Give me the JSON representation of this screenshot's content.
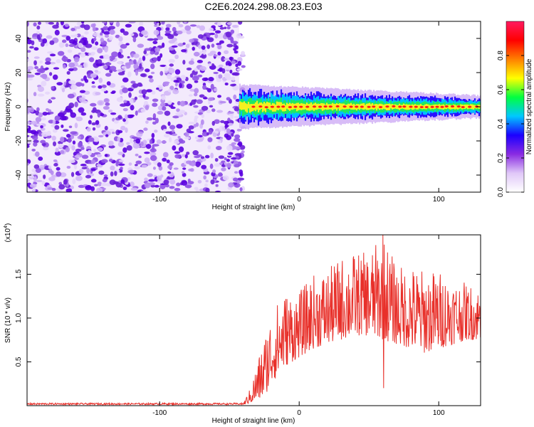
{
  "title": "C2E6.2024.298.08.23.E03",
  "colors": {
    "snr_line": "#e8302a",
    "cmap": [
      "#ffffff",
      "#e0c8f8",
      "#8a2be2",
      "#1b00ff",
      "#00c8ff",
      "#00ff40",
      "#ffff00",
      "#ff8000",
      "#ff0000",
      "#ff1a60"
    ]
  },
  "chart_data": [
    {
      "type": "heatmap",
      "name": "spectrogram",
      "xlabel": "Height of straight line (km)",
      "ylabel": "Frequency (Hz)",
      "xlim": [
        -195,
        130
      ],
      "ylim": [
        -50,
        50
      ],
      "xticks": [
        -100,
        0,
        100
      ],
      "xtick_labels": [
        "-100",
        "0",
        "100"
      ],
      "yticks": [
        -40,
        -20,
        0,
        20,
        40
      ],
      "ytick_labels": [
        "-40",
        "-20",
        "0",
        "20",
        "40"
      ],
      "noise_region_x": [
        -195,
        -43
      ],
      "signal_band": {
        "x_start": -43,
        "x_end": 130,
        "center_hz": 0,
        "width_hz_start": 10,
        "width_hz_end": 5
      },
      "colorbar": {
        "label": "Normalized spectral amplitude",
        "range": [
          0,
          1
        ],
        "ticks": [
          0.0,
          0.2,
          0.4,
          0.6,
          0.8
        ],
        "tick_labels": [
          "0.0",
          "0.2",
          "0.4",
          "0.6",
          "0.8"
        ]
      }
    },
    {
      "type": "line",
      "name": "snr",
      "xlabel": "Height of straight line (km)",
      "ylabel": "SNR (10 * v/v)",
      "scale_label": "(x10",
      "scale_exp": "4",
      "scale_close": ")",
      "xlim": [
        -195,
        130
      ],
      "ylim": [
        0,
        1.95
      ],
      "xticks": [
        -100,
        0,
        100
      ],
      "xtick_labels": [
        "-100",
        "0",
        "100"
      ],
      "yticks": [
        0.5,
        1.0,
        1.5
      ],
      "ytick_labels": [
        "0.5",
        "1.0",
        "1.5"
      ],
      "series_description": "noise floor ~0.02 until -35 km, rises 0.3-0.8 by -20 km, ~1.0 mean from 0 km, peaks ~1.7-1.9 near 40-60 km, ~1.1 at 130 km",
      "envelope": {
        "x": [
          -195,
          -40,
          -35,
          -30,
          -25,
          -20,
          -15,
          -10,
          0,
          10,
          20,
          30,
          40,
          50,
          60,
          70,
          80,
          90,
          100,
          110,
          120,
          130
        ],
        "low": [
          0.01,
          0.01,
          0.03,
          0.05,
          0.1,
          0.25,
          0.35,
          0.45,
          0.55,
          0.65,
          0.7,
          0.75,
          0.8,
          0.8,
          0.75,
          0.7,
          0.65,
          0.6,
          0.65,
          0.7,
          0.75,
          0.75
        ],
        "high": [
          0.03,
          0.03,
          0.2,
          0.5,
          0.8,
          1.05,
          1.2,
          1.3,
          1.3,
          1.5,
          1.55,
          1.7,
          1.75,
          1.75,
          1.95,
          1.6,
          1.6,
          1.55,
          1.55,
          1.45,
          1.4,
          1.35
        ]
      },
      "peaks": [
        {
          "x": 60,
          "y": 1.95
        },
        {
          "x": 60.5,
          "y": 0.2
        }
      ]
    }
  ]
}
